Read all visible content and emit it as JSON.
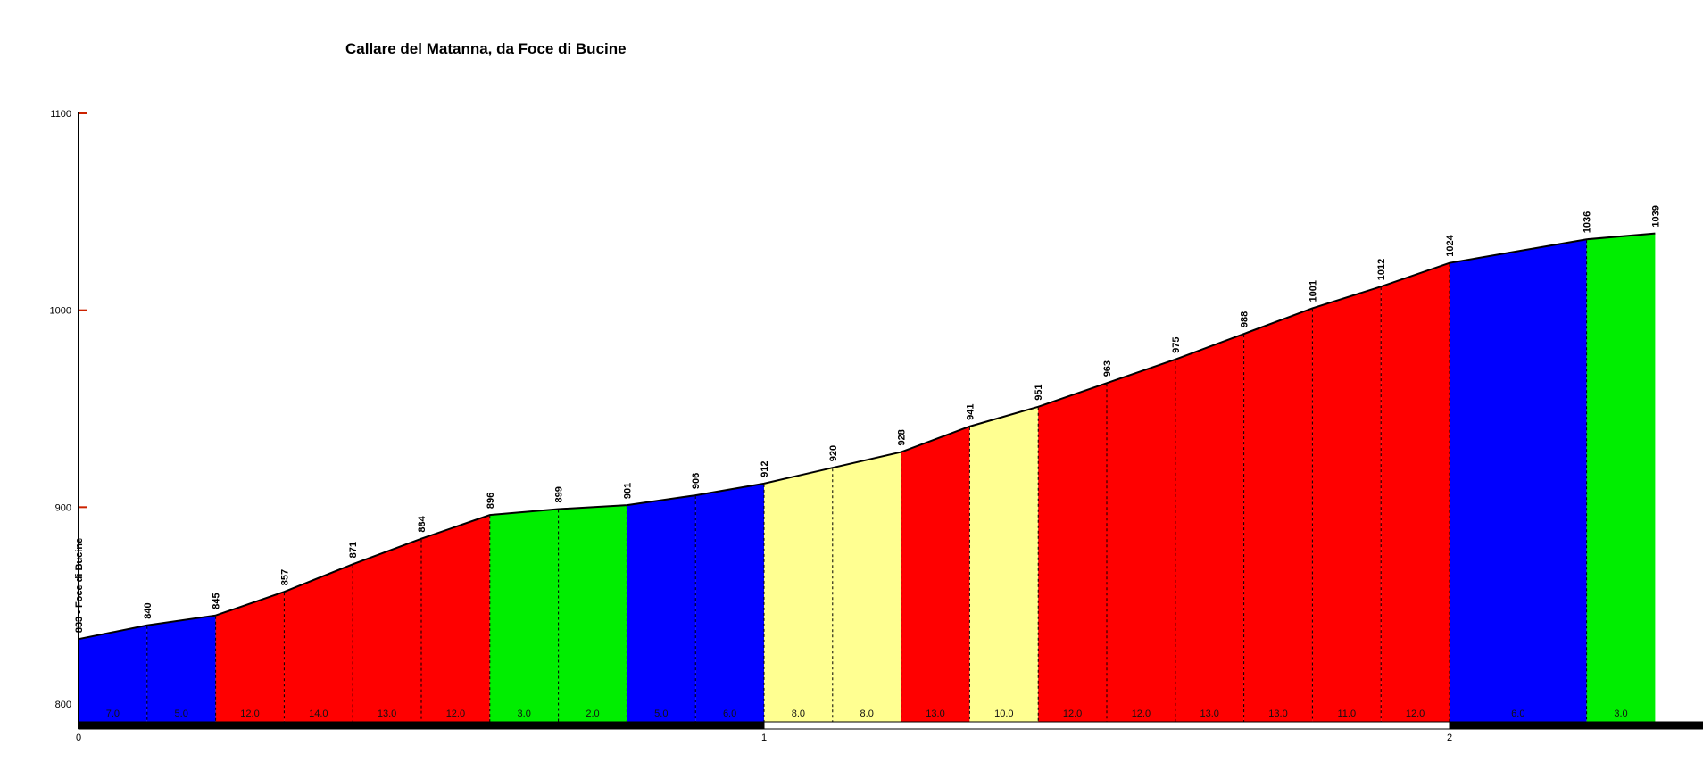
{
  "title": "Callare del Matanna, da Foce di Bucine",
  "chart_data": {
    "type": "area",
    "title": "Callare del Matanna, da Foce di Bucine",
    "ylim": [
      800,
      1100
    ],
    "y_ticks": [
      800,
      900,
      1000,
      1100
    ],
    "x_ticks": [
      0,
      1,
      2
    ],
    "grid": "off",
    "legend": "none",
    "start_point_label": "833 - Foce di Bucine",
    "points": [
      {
        "km": 0.0,
        "elev": 833,
        "label": "833 - Foce di Bucine"
      },
      {
        "km": 0.1,
        "elev": 840,
        "label": "840"
      },
      {
        "km": 0.2,
        "elev": 845,
        "label": "845"
      },
      {
        "km": 0.3,
        "elev": 857,
        "label": "857"
      },
      {
        "km": 0.4,
        "elev": 871,
        "label": "871"
      },
      {
        "km": 0.5,
        "elev": 884,
        "label": "884"
      },
      {
        "km": 0.6,
        "elev": 896,
        "label": "896"
      },
      {
        "km": 0.7,
        "elev": 899,
        "label": "899"
      },
      {
        "km": 0.8,
        "elev": 901,
        "label": "901"
      },
      {
        "km": 0.9,
        "elev": 906,
        "label": "906"
      },
      {
        "km": 1.0,
        "elev": 912,
        "label": "912"
      },
      {
        "km": 1.1,
        "elev": 920,
        "label": "920"
      },
      {
        "km": 1.2,
        "elev": 928,
        "label": "928"
      },
      {
        "km": 1.3,
        "elev": 941,
        "label": "941"
      },
      {
        "km": 1.4,
        "elev": 951,
        "label": "951"
      },
      {
        "km": 1.5,
        "elev": 963,
        "label": "963"
      },
      {
        "km": 1.6,
        "elev": 975,
        "label": "975"
      },
      {
        "km": 1.7,
        "elev": 988,
        "label": "988"
      },
      {
        "km": 1.8,
        "elev": 1001,
        "label": "1001"
      },
      {
        "km": 1.9,
        "elev": 1012,
        "label": "1012"
      },
      {
        "km": 2.0,
        "elev": 1024,
        "label": "1024"
      },
      {
        "km": 2.2,
        "elev": 1036,
        "label": "1036"
      },
      {
        "km": 2.3,
        "elev": 1039,
        "label": "1039"
      }
    ],
    "segments": [
      {
        "from_km": 0.0,
        "to_km": 0.1,
        "gradient": "7.0",
        "color": "blue"
      },
      {
        "from_km": 0.1,
        "to_km": 0.2,
        "gradient": "5.0",
        "color": "blue"
      },
      {
        "from_km": 0.2,
        "to_km": 0.3,
        "gradient": "12.0",
        "color": "red"
      },
      {
        "from_km": 0.3,
        "to_km": 0.4,
        "gradient": "14.0",
        "color": "red"
      },
      {
        "from_km": 0.4,
        "to_km": 0.5,
        "gradient": "13.0",
        "color": "red"
      },
      {
        "from_km": 0.5,
        "to_km": 0.6,
        "gradient": "12.0",
        "color": "red"
      },
      {
        "from_km": 0.6,
        "to_km": 0.7,
        "gradient": "3.0",
        "color": "green"
      },
      {
        "from_km": 0.7,
        "to_km": 0.8,
        "gradient": "2.0",
        "color": "green"
      },
      {
        "from_km": 0.8,
        "to_km": 0.9,
        "gradient": "5.0",
        "color": "blue"
      },
      {
        "from_km": 0.9,
        "to_km": 1.0,
        "gradient": "6.0",
        "color": "blue"
      },
      {
        "from_km": 1.0,
        "to_km": 1.1,
        "gradient": "8.0",
        "color": "yellow"
      },
      {
        "from_km": 1.1,
        "to_km": 1.2,
        "gradient": "8.0",
        "color": "yellow"
      },
      {
        "from_km": 1.2,
        "to_km": 1.3,
        "gradient": "13.0",
        "color": "red"
      },
      {
        "from_km": 1.3,
        "to_km": 1.4,
        "gradient": "10.0",
        "color": "yellow"
      },
      {
        "from_km": 1.4,
        "to_km": 1.5,
        "gradient": "12.0",
        "color": "red"
      },
      {
        "from_km": 1.5,
        "to_km": 1.6,
        "gradient": "12.0",
        "color": "red"
      },
      {
        "from_km": 1.6,
        "to_km": 1.7,
        "gradient": "13.0",
        "color": "red"
      },
      {
        "from_km": 1.7,
        "to_km": 1.8,
        "gradient": "13.0",
        "color": "red"
      },
      {
        "from_km": 1.8,
        "to_km": 1.9,
        "gradient": "11.0",
        "color": "red"
      },
      {
        "from_km": 1.9,
        "to_km": 2.0,
        "gradient": "12.0",
        "color": "red"
      },
      {
        "from_km": 2.0,
        "to_km": 2.2,
        "gradient": "6.0",
        "color": "blue"
      },
      {
        "from_km": 2.2,
        "to_km": 2.3,
        "gradient": "3.0",
        "color": "green"
      }
    ],
    "colors": {
      "blue": "#0000ff",
      "red": "#ff0000",
      "green": "#00ee00",
      "yellow": "#ffff91"
    },
    "surface_bar": [
      {
        "from_km": 0.0,
        "to_km": 1.0,
        "fill": "#000000"
      },
      {
        "from_km": 1.0,
        "to_km": 2.0,
        "fill": "#ffffff"
      },
      {
        "from_km": 2.0,
        "to_km": 2.37,
        "fill": "#000000"
      }
    ],
    "axis_color": "#000000",
    "tick_color": "#cc2200",
    "outline_color": "#000000",
    "label_color": "#000000"
  }
}
